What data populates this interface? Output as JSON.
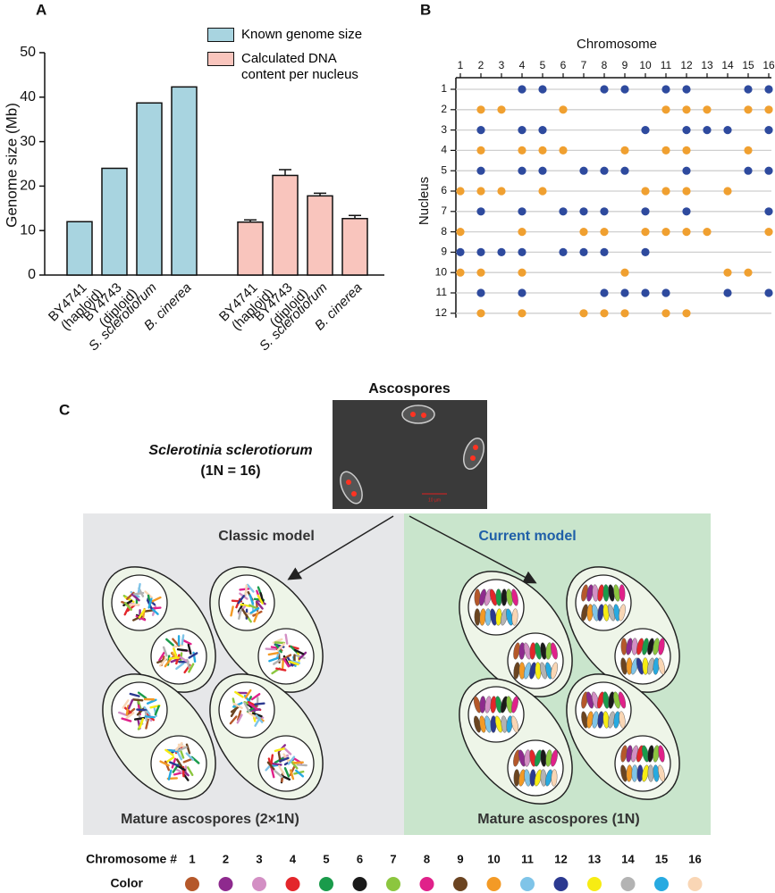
{
  "chart_data": [
    {
      "type": "bar",
      "label": "A",
      "ylabel": "Genome size (Mb)",
      "ylim": [
        0,
        50
      ],
      "yticks": [
        0,
        10,
        20,
        30,
        40,
        50
      ],
      "italic_categories": [
        false,
        false,
        true,
        true
      ],
      "series": [
        {
          "name": "Known genome size",
          "color": "#a8d4e0",
          "categories": [
            [
              "BY4741",
              "(haploid)"
            ],
            [
              "BY4743",
              "(diploid)"
            ],
            [
              "S. sclerotiorum"
            ],
            [
              "B. cinerea"
            ]
          ],
          "values": [
            12,
            24,
            38.7,
            42.3
          ]
        },
        {
          "name": "Calculated DNA content per nucleus",
          "color": "#f9c5bd",
          "categories": [
            [
              "BY4741",
              "(haploid)"
            ],
            [
              "BY4743",
              "(diploid)"
            ],
            [
              "S. sclerotiorum"
            ],
            [
              "B. cinerea"
            ]
          ],
          "values": [
            11.9,
            22.4,
            17.8,
            12.7
          ],
          "errors": [
            0.5,
            1.3,
            0.6,
            0.7
          ]
        }
      ]
    },
    {
      "type": "dot_matrix",
      "label": "B",
      "xlabel": "Chromosome",
      "ylabel": "Nucleus",
      "xlim": [
        1,
        16
      ],
      "xticks": [
        1,
        2,
        3,
        4,
        5,
        6,
        7,
        8,
        9,
        10,
        11,
        12,
        13,
        14,
        15,
        16
      ],
      "series": [
        {
          "name": "1",
          "color": "#2e4a9e",
          "values": [
            4,
            5,
            8,
            9,
            11,
            12,
            15,
            16
          ]
        },
        {
          "name": "2",
          "color": "#f0a030",
          "values": [
            2,
            3,
            6,
            11,
            12,
            13,
            15,
            16
          ]
        },
        {
          "name": "3",
          "color": "#2e4a9e",
          "values": [
            2,
            4,
            5,
            10,
            12,
            13,
            14,
            16
          ]
        },
        {
          "name": "4",
          "color": "#f0a030",
          "values": [
            2,
            4,
            5,
            6,
            9,
            11,
            12,
            15
          ]
        },
        {
          "name": "5",
          "color": "#2e4a9e",
          "values": [
            2,
            4,
            5,
            7,
            8,
            9,
            12,
            15,
            16
          ]
        },
        {
          "name": "6",
          "color": "#f0a030",
          "values": [
            1,
            2,
            3,
            5,
            10,
            11,
            12,
            14
          ]
        },
        {
          "name": "7",
          "color": "#2e4a9e",
          "values": [
            2,
            4,
            6,
            7,
            8,
            10,
            12,
            16
          ]
        },
        {
          "name": "8",
          "color": "#f0a030",
          "values": [
            1,
            4,
            7,
            8,
            10,
            11,
            12,
            13,
            16
          ]
        },
        {
          "name": "9",
          "color": "#2e4a9e",
          "values": [
            1,
            2,
            3,
            4,
            6,
            7,
            8,
            10
          ]
        },
        {
          "name": "10",
          "color": "#f0a030",
          "values": [
            1,
            2,
            4,
            9,
            14,
            15
          ]
        },
        {
          "name": "11",
          "color": "#2e4a9e",
          "values": [
            2,
            4,
            8,
            9,
            10,
            11,
            14,
            16
          ]
        },
        {
          "name": "12",
          "color": "#f0a030",
          "values": [
            2,
            4,
            7,
            8,
            9,
            11,
            12
          ]
        }
      ]
    }
  ],
  "diagram": {
    "label": "C",
    "image_title": "Ascospores",
    "scale_bar": "10 µm",
    "organism": "Sclerotinia sclerotiorum",
    "chromosome_count": "(1N = 16)",
    "panels": [
      {
        "title": "Classic model",
        "caption": "Mature ascospores (2×1N)"
      },
      {
        "title": "Current model",
        "caption": "Mature ascospores (1N)"
      }
    ],
    "legend": {
      "number_label": "Chromosome #",
      "color_label": "Color",
      "chromosomes": [
        1,
        2,
        3,
        4,
        5,
        6,
        7,
        8,
        9,
        10,
        11,
        12,
        13,
        14,
        15,
        16
      ],
      "colors": [
        "#b5582a",
        "#8e2a8e",
        "#d38fc4",
        "#e3262b",
        "#1a9b4b",
        "#1a1a1a",
        "#8cc63f",
        "#e0218a",
        "#6b4421",
        "#f39a26",
        "#7fc4e8",
        "#2b3990",
        "#f7ec13",
        "#b3b3b3",
        "#27aae1",
        "#f9d6b5"
      ]
    }
  }
}
